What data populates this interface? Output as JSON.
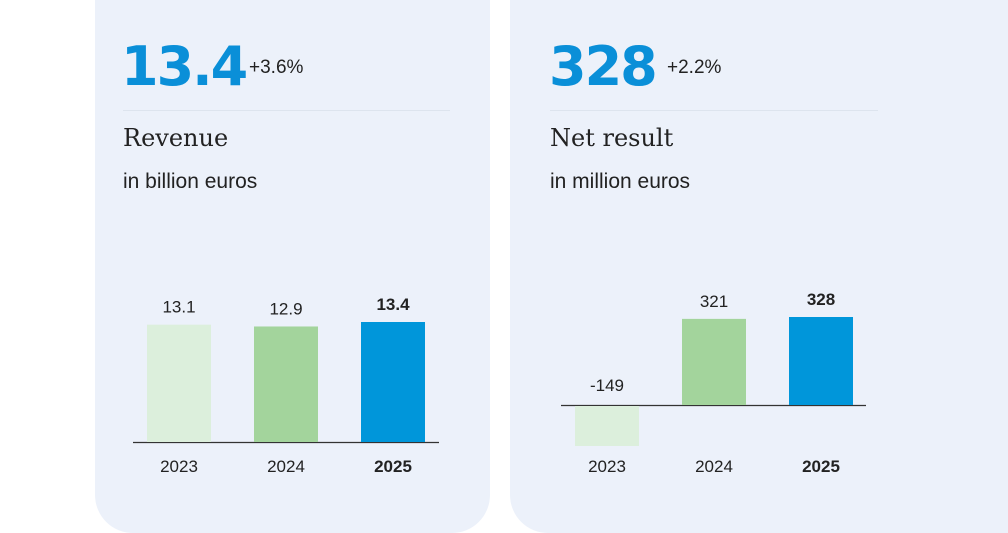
{
  "cards": [
    {
      "value": "13.4",
      "change": "+3.6%",
      "title": "Revenue",
      "subtitle": "in billion euros"
    },
    {
      "value": "328",
      "change": "+2.2%",
      "title": "Net result",
      "subtitle": "in million euros"
    }
  ],
  "colors": {
    "accent": "#0a8fd8",
    "bar_2023": "#dcefdc",
    "bar_2024": "#a3d49c",
    "bar_2025": "#0096da",
    "card_bg": "#ecf1fa"
  },
  "chart_data": [
    {
      "type": "bar",
      "categories": [
        "2023",
        "2024",
        "2025"
      ],
      "values": [
        13.1,
        12.9,
        13.4
      ],
      "value_labels": [
        "13.1",
        "12.9",
        "13.4"
      ],
      "title": "Revenue",
      "xlabel": "",
      "ylabel": "in billion euros",
      "ylim": [
        0,
        13.4
      ],
      "grid": false,
      "highlight_index": 2
    },
    {
      "type": "bar",
      "categories": [
        "2023",
        "2024",
        "2025"
      ],
      "values": [
        -149,
        321,
        328
      ],
      "value_labels": [
        "-149",
        "321",
        "328"
      ],
      "title": "Net result",
      "xlabel": "",
      "ylabel": "in million euros",
      "ylim": [
        -149,
        328
      ],
      "grid": false,
      "highlight_index": 2
    }
  ]
}
